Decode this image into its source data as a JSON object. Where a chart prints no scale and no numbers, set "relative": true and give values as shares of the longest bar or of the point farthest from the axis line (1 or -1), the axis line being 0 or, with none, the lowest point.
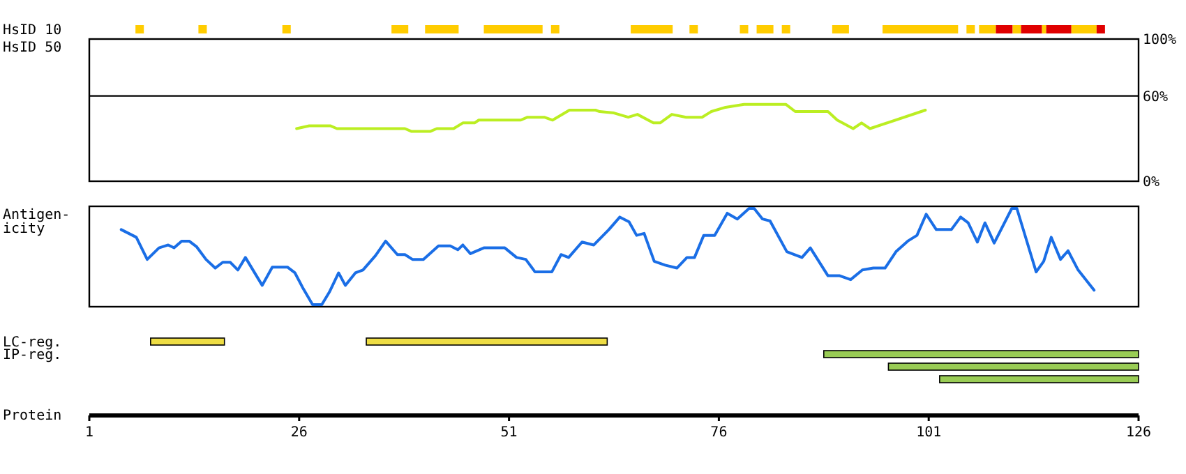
{
  "chart_data": [
    {
      "type": "bar",
      "orientation": "horizontal",
      "categories": [
        "HsID 10"
      ],
      "xlim": [
        1,
        126
      ],
      "tick_labels": false,
      "series": [
        {
          "color": "#ffcc00",
          "base": [
            6.5
          ],
          "values": [
            1
          ]
        },
        {
          "color": "#ffcc00",
          "base": [
            14
          ],
          "values": [
            1
          ]
        },
        {
          "color": "#ffcc00",
          "base": [
            24
          ],
          "values": [
            1
          ]
        },
        {
          "color": "#ffcc00",
          "base": [
            37
          ],
          "values": [
            2
          ]
        },
        {
          "color": "#ffcc00",
          "base": [
            41
          ],
          "values": [
            4
          ]
        },
        {
          "color": "#ffcc00",
          "base": [
            48
          ],
          "values": [
            7
          ]
        },
        {
          "color": "#ffcc00",
          "base": [
            56
          ],
          "values": [
            1
          ]
        },
        {
          "color": "#ffcc00",
          "base": [
            65.5
          ],
          "values": [
            5
          ]
        },
        {
          "color": "#ffcc00",
          "base": [
            72.5
          ],
          "values": [
            1
          ]
        },
        {
          "color": "#ffcc00",
          "base": [
            78.5
          ],
          "values": [
            1
          ]
        },
        {
          "color": "#ffcc00",
          "base": [
            80.5
          ],
          "values": [
            2
          ]
        },
        {
          "color": "#ffcc00",
          "base": [
            83.5
          ],
          "values": [
            1
          ]
        },
        {
          "color": "#ffcc00",
          "base": [
            89.5
          ],
          "values": [
            2
          ]
        },
        {
          "color": "#ffcc00",
          "base": [
            95.5
          ],
          "values": [
            9
          ]
        },
        {
          "color": "#ffcc00",
          "base": [
            105.5
          ],
          "values": [
            1
          ]
        },
        {
          "color": "#ffcc00",
          "base": [
            107
          ],
          "values": [
            2
          ]
        },
        {
          "color": "#e00000",
          "base": [
            109
          ],
          "values": [
            2
          ]
        },
        {
          "color": "#ffcc00",
          "base": [
            111
          ],
          "values": [
            1
          ]
        },
        {
          "color": "#e00000",
          "base": [
            112
          ],
          "values": [
            2.5
          ]
        },
        {
          "color": "#ffcc00",
          "base": [
            114.5
          ],
          "values": [
            0.5
          ]
        },
        {
          "color": "#e00000",
          "base": [
            115
          ],
          "values": [
            3
          ]
        },
        {
          "color": "#ffcc00",
          "base": [
            118
          ],
          "values": [
            3
          ]
        },
        {
          "color": "#e00000",
          "base": [
            121
          ],
          "values": [
            1
          ]
        }
      ]
    },
    {
      "type": "line",
      "ylabel": "HsID 50",
      "xlim": [
        1,
        126
      ],
      "ylim": [
        0,
        100
      ],
      "yticks": [
        {
          "value": 0,
          "label": "0%"
        },
        {
          "value": 60,
          "label": "60%"
        },
        {
          "value": 100,
          "label": "100%"
        }
      ],
      "tick_labels": "y",
      "ref_lines": [
        {
          "axis": "y",
          "value": 60,
          "color": "#000000"
        }
      ],
      "series": [
        {
          "color": "#bbee22",
          "x": [
            25.7,
            27.2,
            29.7,
            30.5,
            38.6,
            39.4,
            41.6,
            42.4,
            44.4,
            45.5,
            46.9,
            47.4,
            52.4,
            53.2,
            55.2,
            56.2,
            58.2,
            61.3,
            61.8,
            63.5,
            65.2,
            66.3,
            68.2,
            69,
            70.4,
            72.1,
            74,
            75.1,
            76.8,
            79,
            84,
            85.1,
            89,
            90.1,
            92,
            93,
            94,
            100.6
          ],
          "values": [
            37,
            39,
            39,
            37,
            37,
            35,
            35,
            37,
            37,
            41,
            41,
            43,
            43,
            45,
            45,
            43,
            50,
            50,
            49,
            48,
            45,
            47,
            41,
            41,
            47,
            45,
            45,
            49,
            52,
            54,
            54,
            49,
            49,
            43,
            37,
            41,
            37,
            50
          ]
        }
      ]
    },
    {
      "type": "line",
      "ylabel": "Antigen-\nicity",
      "relative": true,
      "xlim": [
        1,
        126
      ],
      "tick_labels": false,
      "series": [
        {
          "color": "#1a6ee6",
          "x": [
            4.8,
            6.6,
            7.9,
            9.3,
            10.4,
            11.1,
            12,
            12.9,
            13.8,
            14.9,
            16,
            16.9,
            17.8,
            18.7,
            19.6,
            21.6,
            22.8,
            24.6,
            25.5,
            26.4,
            27.6,
            28.7,
            29.6,
            30.7,
            31.5,
            32.7,
            33.6,
            35.1,
            36.3,
            37.7,
            38.6,
            39.5,
            40.8,
            42.6,
            44,
            44.9,
            45.5,
            46.4,
            48,
            50.5,
            51.9,
            53,
            54.1,
            56.1,
            57.2,
            58.1,
            59.7,
            61.1,
            62.9,
            64.2,
            65.3,
            66.2,
            67.1,
            68.3,
            69.6,
            71,
            72.2,
            73.1,
            74.2,
            75.5,
            77,
            78.2,
            79.6,
            80.2,
            81.2,
            82.1,
            84.1,
            85.9,
            86.9,
            89,
            90.4,
            91.7,
            93.1,
            94.4,
            95.8,
            97.1,
            98.5,
            99.6,
            100.7,
            101.9,
            103.7,
            104.8,
            105.7,
            106.8,
            107.7,
            108.8,
            110.9,
            111.5,
            113.8,
            114.7,
            115.6,
            116.7,
            117.6,
            118.8,
            120.7
          ],
          "values": [
            0.78,
            0.7,
            0.47,
            0.59,
            0.62,
            0.59,
            0.66,
            0.66,
            0.6,
            0.47,
            0.38,
            0.44,
            0.44,
            0.36,
            0.49,
            0.2,
            0.39,
            0.39,
            0.33,
            0.18,
            0,
            0,
            0.13,
            0.33,
            0.2,
            0.33,
            0.36,
            0.51,
            0.66,
            0.52,
            0.52,
            0.47,
            0.47,
            0.61,
            0.61,
            0.57,
            0.62,
            0.53,
            0.59,
            0.59,
            0.49,
            0.47,
            0.34,
            0.34,
            0.52,
            0.49,
            0.65,
            0.62,
            0.78,
            0.91,
            0.86,
            0.72,
            0.74,
            0.45,
            0.41,
            0.38,
            0.49,
            0.49,
            0.72,
            0.72,
            0.95,
            0.89,
            1,
            1,
            0.89,
            0.87,
            0.55,
            0.49,
            0.59,
            0.3,
            0.3,
            0.26,
            0.36,
            0.38,
            0.38,
            0.55,
            0.66,
            0.72,
            0.94,
            0.78,
            0.78,
            0.91,
            0.85,
            0.65,
            0.85,
            0.64,
            1,
            1,
            0.34,
            0.45,
            0.7,
            0.47,
            0.56,
            0.36,
            0.15
          ]
        }
      ]
    },
    {
      "type": "bar",
      "orientation": "horizontal",
      "xlabel": "Protein",
      "categories": [
        "LC-reg.",
        "IP-reg.",
        null,
        null
      ],
      "xlim": [
        1,
        126
      ],
      "xticks": [
        1,
        26,
        51,
        76,
        101,
        126
      ],
      "tick_labels": "x",
      "series": [
        {
          "colors": [
            "#eedd44",
            "#99cc55",
            "#99cc55",
            "#99cc55"
          ],
          "base": [
            8.3,
            88.5,
            96.2,
            102.3
          ],
          "values": [
            8.8,
            37.5,
            29.8,
            23.7
          ]
        },
        {
          "colors": [
            "#eedd44",
            null,
            null,
            null
          ],
          "base": [
            34,
            null,
            null,
            null
          ],
          "values": [
            28.7,
            null,
            null,
            null
          ]
        }
      ]
    }
  ]
}
